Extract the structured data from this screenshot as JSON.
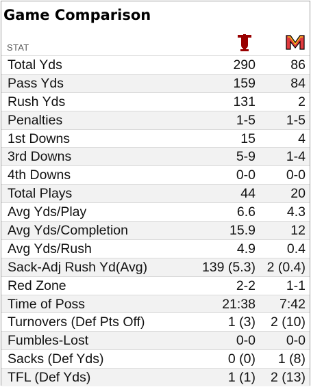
{
  "title": "Game Comparison",
  "header": {
    "stat_label": "STAT",
    "team1_icon": "indiana-logo-icon",
    "team2_icon": "maryland-logo-icon",
    "team1_color": "#990000",
    "team2_color": "#e03a3e"
  },
  "rows": [
    {
      "stat": "Total Yds",
      "team1": "290",
      "team2": "86"
    },
    {
      "stat": "Pass Yds",
      "team1": "159",
      "team2": "84"
    },
    {
      "stat": "Rush Yds",
      "team1": "131",
      "team2": "2"
    },
    {
      "stat": "Penalties",
      "team1": "1-5",
      "team2": "1-5"
    },
    {
      "stat": "1st Downs",
      "team1": "15",
      "team2": "4"
    },
    {
      "stat": "3rd Downs",
      "team1": "5-9",
      "team2": "1-4"
    },
    {
      "stat": "4th Downs",
      "team1": "0-0",
      "team2": "0-0"
    },
    {
      "stat": "Total Plays",
      "team1": "44",
      "team2": "20"
    },
    {
      "stat": "Avg Yds/Play",
      "team1": "6.6",
      "team2": "4.3"
    },
    {
      "stat": "Avg Yds/Completion",
      "team1": "15.9",
      "team2": "12"
    },
    {
      "stat": "Avg Yds/Rush",
      "team1": "4.9",
      "team2": "0.4"
    },
    {
      "stat": "Sack-Adj Rush Yd(Avg)",
      "team1": "139 (5.3)",
      "team2": "2 (0.4)"
    },
    {
      "stat": "Red Zone",
      "team1": "2-2",
      "team2": "1-1"
    },
    {
      "stat": "Time of Poss",
      "team1": "21:38",
      "team2": "7:42"
    },
    {
      "stat": "Turnovers (Def Pts Off)",
      "team1": "1 (3)",
      "team2": "2 (10)"
    },
    {
      "stat": "Fumbles-Lost",
      "team1": "0-0",
      "team2": "0-0"
    },
    {
      "stat": "Sacks (Def Yds)",
      "team1": "0 (0)",
      "team2": "1 (8)"
    },
    {
      "stat": "TFL (Def Yds)",
      "team1": "1 (1)",
      "team2": "2 (13)"
    }
  ]
}
